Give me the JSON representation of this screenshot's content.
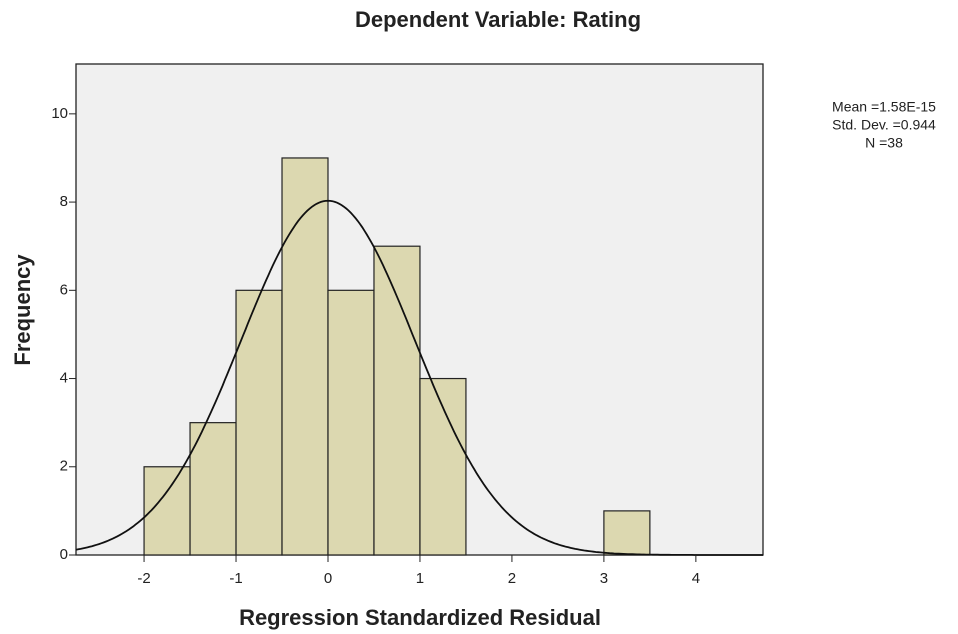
{
  "chart_data": {
    "type": "histogram",
    "title": "Dependent Variable: Rating",
    "x_label": "Regression Standardized Residual",
    "y_label": "Frequency",
    "bins": [
      -2,
      -1.5,
      -1,
      -0.5,
      0,
      0.5,
      1,
      1.5,
      2,
      2.5,
      3,
      3.5
    ],
    "values": [
      2,
      3,
      6,
      9,
      6,
      7,
      4,
      0,
      0,
      0,
      1
    ],
    "color": "#d8d4a4",
    "xlim": [
      -2.74,
      4.73
    ],
    "xticks": [
      -2,
      -1,
      0,
      1,
      2,
      3,
      4
    ],
    "ylim": [
      0,
      11.13
    ],
    "yticks": [
      0,
      2,
      4,
      6,
      8,
      10
    ],
    "stats": [
      {
        "value": 1.58e-15,
        "label": "Mean =1.58E-15"
      },
      {
        "value": 0.944,
        "label": "Std. Dev. =0.944"
      },
      {
        "value": 38,
        "label": "N =38"
      }
    ]
  }
}
